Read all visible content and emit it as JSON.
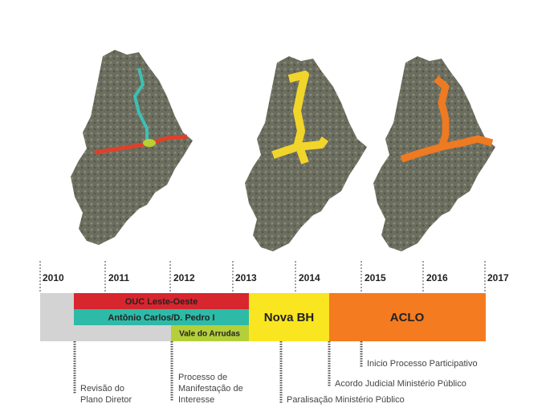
{
  "timeline": {
    "years": [
      "2010",
      "2011",
      "2012",
      "2013",
      "2014",
      "2015",
      "2016",
      "2017"
    ],
    "bars": [
      {
        "label": "OUC Leste-Oeste"
      },
      {
        "label": "Antônio Carlos/D. Pedro I"
      },
      {
        "label": "Vale do Arrudas"
      },
      {
        "label": "Nova BH"
      },
      {
        "label": "ACLO"
      }
    ],
    "events": [
      {
        "lines": [
          "Revisão do",
          "Plano Diretor"
        ]
      },
      {
        "lines": [
          "Processo de",
          "Manifestação de",
          "Interesse"
        ]
      },
      {
        "lines": [
          "Paralisação Ministério Público"
        ]
      },
      {
        "lines": [
          "Acordo Judicial Ministério Público"
        ]
      },
      {
        "lines": [
          "Inicio Processo Participativo"
        ]
      }
    ]
  }
}
